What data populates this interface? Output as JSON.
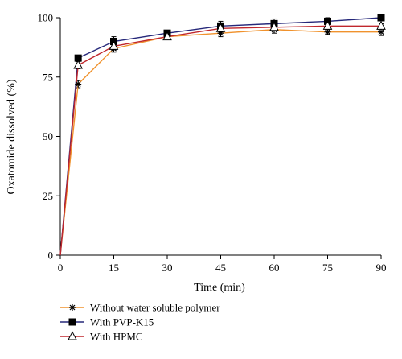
{
  "chart_data": {
    "type": "line",
    "xlabel": "Time (min)",
    "ylabel": "Oxatomide dissolved (%)",
    "xlim": [
      0,
      90
    ],
    "ylim": [
      0,
      100
    ],
    "xticks": [
      0,
      15,
      30,
      45,
      60,
      75,
      90
    ],
    "yticks": [
      0,
      25,
      50,
      75,
      100
    ],
    "grid": false,
    "legend_position": "bottom-left",
    "series": [
      {
        "name": "Without water soluble polymer",
        "color": "#f0922d",
        "marker": "asterisk",
        "x": [
          0,
          5,
          15,
          30,
          45,
          60,
          75,
          90
        ],
        "y": [
          0,
          72,
          87,
          92,
          93.5,
          95,
          94,
          94
        ],
        "err": [
          0,
          1.5,
          1.5,
          1,
          1.5,
          1.5,
          1,
          1.5
        ]
      },
      {
        "name": "With PVP-K15",
        "color": "#26287a",
        "marker": "square",
        "x": [
          0,
          5,
          15,
          30,
          45,
          60,
          75,
          90
        ],
        "y": [
          0,
          83,
          90,
          93.5,
          96.5,
          97.5,
          98.5,
          100
        ],
        "err": [
          0,
          1,
          2,
          1,
          2,
          2,
          1.5,
          1
        ]
      },
      {
        "name": "With HPMC",
        "color": "#c0272d",
        "marker": "triangle",
        "x": [
          0,
          5,
          15,
          30,
          45,
          60,
          75,
          90
        ],
        "y": [
          0,
          80,
          88,
          92,
          95.5,
          96,
          96.5,
          96.5
        ],
        "err": [
          0,
          1.5,
          1.5,
          1,
          1.5,
          1.5,
          1,
          1
        ]
      }
    ]
  }
}
